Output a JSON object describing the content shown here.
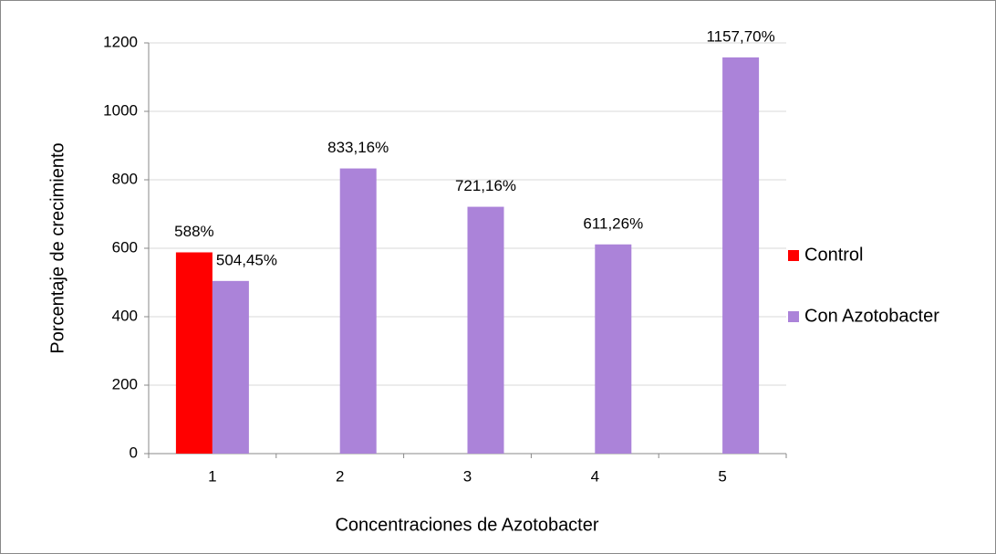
{
  "chart_data": {
    "type": "bar",
    "categories": [
      "1",
      "2",
      "3",
      "4",
      "5"
    ],
    "series": [
      {
        "name": "Control",
        "color": "#ff0000",
        "values": [
          588,
          null,
          null,
          null,
          null
        ],
        "value_labels": [
          "588%",
          null,
          null,
          null,
          null
        ]
      },
      {
        "name": "Con Azotobacter",
        "color": "#ab83d9",
        "values": [
          504.45,
          833.16,
          721.16,
          611.26,
          1157.7
        ],
        "value_labels": [
          "504,45%",
          "833,16%",
          "721,16%",
          "611,26%",
          "1157,70%"
        ]
      }
    ],
    "xlabel": "Concentraciones de Azotobacter",
    "ylabel": "Porcentaje de crecimiento",
    "ylim": [
      0,
      1200
    ],
    "yticks": [
      0,
      200,
      400,
      600,
      800,
      1000,
      1200
    ],
    "grid": true,
    "legend": "right"
  }
}
